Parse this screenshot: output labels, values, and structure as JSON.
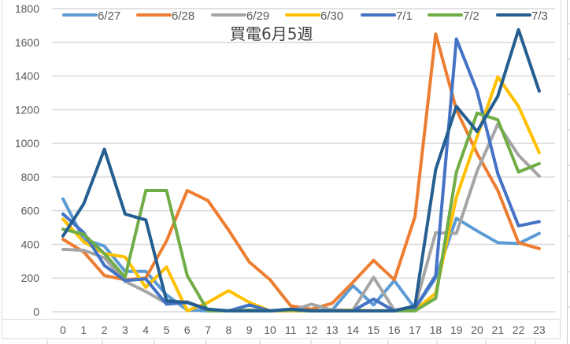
{
  "chart_data": {
    "type": "line",
    "title": "買電6月5週",
    "xlabel": "",
    "ylabel": "",
    "ylim": [
      0,
      1800
    ],
    "yticks": [
      0,
      200,
      400,
      600,
      800,
      1000,
      1200,
      1400,
      1600,
      1800
    ],
    "grid": true,
    "legend_position": "top",
    "categories": [
      "0",
      "1",
      "2",
      "3",
      "4",
      "5",
      "6",
      "7",
      "8",
      "9",
      "10",
      "11",
      "12",
      "13",
      "14",
      "15",
      "16",
      "17",
      "18",
      "19",
      "20",
      "21",
      "22",
      "23"
    ],
    "series": [
      {
        "name": "6/27",
        "color": "#5B9BD5",
        "values": [
          670,
          430,
          390,
          240,
          240,
          100,
          10,
          5,
          5,
          5,
          5,
          5,
          5,
          10,
          155,
          40,
          185,
          20,
          200,
          555,
          480,
          410,
          405,
          465
        ]
      },
      {
        "name": "6/28",
        "color": "#ED7D31",
        "values": [
          430,
          355,
          215,
          190,
          200,
          420,
          720,
          660,
          485,
          295,
          190,
          35,
          15,
          50,
          175,
          305,
          190,
          565,
          1650,
          1200,
          940,
          720,
          410,
          375
        ]
      },
      {
        "name": "6/29",
        "color": "#A5A5A5",
        "values": [
          370,
          365,
          320,
          180,
          120,
          50,
          60,
          10,
          5,
          5,
          5,
          5,
          45,
          10,
          10,
          205,
          10,
          30,
          470,
          465,
          835,
          1115,
          930,
          805
        ]
      },
      {
        "name": "6/30",
        "color": "#FFC000",
        "values": [
          550,
          415,
          345,
          325,
          145,
          265,
          5,
          55,
          125,
          55,
          5,
          5,
          5,
          5,
          10,
          5,
          5,
          10,
          110,
          680,
          1040,
          1395,
          1220,
          945
        ]
      },
      {
        "name": "7/1",
        "color": "#4472C4",
        "values": [
          580,
          470,
          275,
          185,
          195,
          45,
          55,
          10,
          5,
          40,
          5,
          10,
          5,
          5,
          5,
          75,
          5,
          20,
          215,
          1620,
          1310,
          820,
          510,
          535
        ]
      },
      {
        "name": "7/2",
        "color": "#70AD47",
        "values": [
          490,
          460,
          345,
          205,
          720,
          720,
          215,
          5,
          5,
          10,
          5,
          10,
          5,
          5,
          5,
          5,
          5,
          5,
          80,
          830,
          1180,
          1140,
          830,
          880
        ]
      },
      {
        "name": "7/3",
        "color": "#255E91",
        "values": [
          450,
          640,
          965,
          580,
          545,
          65,
          55,
          15,
          5,
          5,
          5,
          15,
          5,
          5,
          5,
          5,
          5,
          35,
          845,
          1220,
          1070,
          1280,
          1675,
          1310
        ]
      }
    ]
  },
  "colors": {
    "grid": "#d9d9d9",
    "tick_text": "#595959",
    "title_text": "#404040"
  }
}
